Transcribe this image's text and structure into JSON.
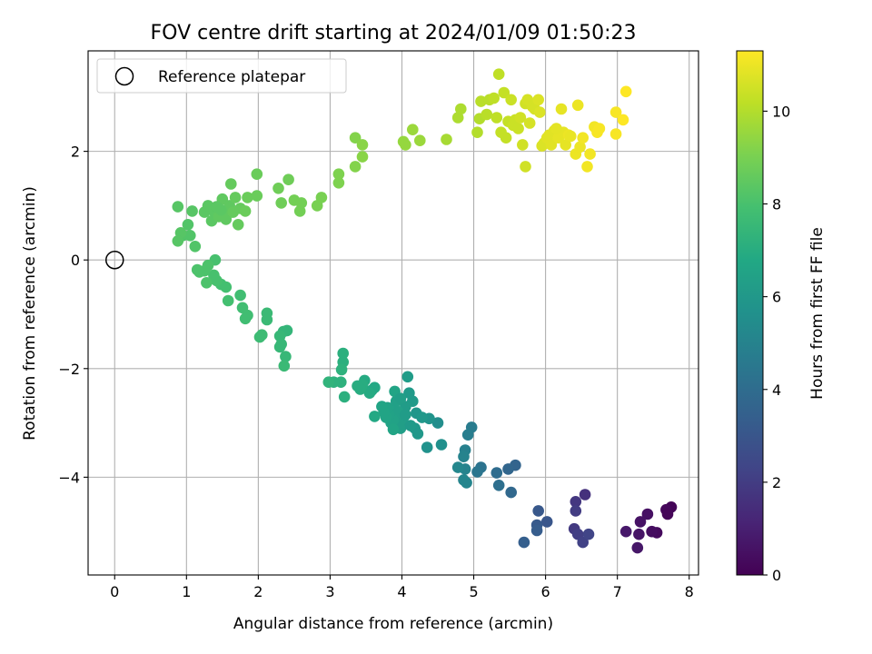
{
  "chart_data": {
    "type": "scatter",
    "title": "FOV centre drift starting at 2024/01/09 01:50:23",
    "xlabel": "Angular distance from reference (arcmin)",
    "ylabel": "Rotation from reference (arcmin)",
    "xlim": [
      -0.37,
      8.13
    ],
    "ylim": [
      -5.8,
      3.85
    ],
    "xticks": [
      0,
      1,
      2,
      3,
      4,
      5,
      6,
      7,
      8
    ],
    "yticks": [
      -4,
      -2,
      0,
      2
    ],
    "grid": true,
    "legend": {
      "position": "top-left",
      "entries": [
        {
          "label": "Reference platepar",
          "marker": "open-circle"
        }
      ]
    },
    "reference_point": {
      "x": 0,
      "y": 0
    },
    "colorbar": {
      "label": "Hours from first FF file",
      "range": [
        0,
        11.3
      ],
      "ticks": [
        0,
        2,
        4,
        6,
        8,
        10
      ],
      "colormap": "viridis"
    },
    "points": [
      {
        "x": 7.75,
        "y": -4.55,
        "c": 0.1
      },
      {
        "x": 7.68,
        "y": -4.6,
        "c": 0.2
      },
      {
        "x": 7.7,
        "y": -4.68,
        "c": 0.15
      },
      {
        "x": 7.55,
        "y": -5.02,
        "c": 0.3
      },
      {
        "x": 7.48,
        "y": -5.0,
        "c": 0.4
      },
      {
        "x": 7.42,
        "y": -4.68,
        "c": 0.5
      },
      {
        "x": 7.32,
        "y": -4.82,
        "c": 0.55
      },
      {
        "x": 7.3,
        "y": -5.05,
        "c": 0.6
      },
      {
        "x": 7.28,
        "y": -5.3,
        "c": 0.7
      },
      {
        "x": 7.12,
        "y": -5.0,
        "c": 0.75
      },
      {
        "x": 6.55,
        "y": -4.32,
        "c": 1.6
      },
      {
        "x": 6.42,
        "y": -4.45,
        "c": 1.8
      },
      {
        "x": 6.42,
        "y": -4.62,
        "c": 2.0
      },
      {
        "x": 6.4,
        "y": -4.95,
        "c": 1.9
      },
      {
        "x": 6.45,
        "y": -5.05,
        "c": 2.1
      },
      {
        "x": 6.52,
        "y": -5.2,
        "c": 2.2
      },
      {
        "x": 6.6,
        "y": -5.05,
        "c": 2.3
      },
      {
        "x": 6.02,
        "y": -4.82,
        "c": 3.0
      },
      {
        "x": 5.9,
        "y": -4.62,
        "c": 3.1
      },
      {
        "x": 5.88,
        "y": -4.88,
        "c": 3.2
      },
      {
        "x": 5.88,
        "y": -4.98,
        "c": 3.3
      },
      {
        "x": 5.7,
        "y": -5.2,
        "c": 3.4
      },
      {
        "x": 5.58,
        "y": -3.78,
        "c": 3.6
      },
      {
        "x": 5.48,
        "y": -3.85,
        "c": 3.7
      },
      {
        "x": 5.52,
        "y": -4.28,
        "c": 3.8
      },
      {
        "x": 5.32,
        "y": -3.92,
        "c": 4.0
      },
      {
        "x": 5.35,
        "y": -4.15,
        "c": 4.1
      },
      {
        "x": 5.1,
        "y": -3.82,
        "c": 4.3
      },
      {
        "x": 5.05,
        "y": -3.9,
        "c": 4.4
      },
      {
        "x": 4.97,
        "y": -3.08,
        "c": 4.7
      },
      {
        "x": 4.92,
        "y": -3.22,
        "c": 4.8
      },
      {
        "x": 4.88,
        "y": -3.5,
        "c": 4.9
      },
      {
        "x": 4.86,
        "y": -3.62,
        "c": 5.0
      },
      {
        "x": 4.88,
        "y": -3.85,
        "c": 5.0
      },
      {
        "x": 4.86,
        "y": -4.05,
        "c": 5.1
      },
      {
        "x": 4.9,
        "y": -4.1,
        "c": 5.1
      },
      {
        "x": 4.78,
        "y": -3.82,
        "c": 5.2
      },
      {
        "x": 4.5,
        "y": -3.0,
        "c": 5.5
      },
      {
        "x": 4.55,
        "y": -3.4,
        "c": 5.6
      },
      {
        "x": 4.35,
        "y": -3.45,
        "c": 5.7
      },
      {
        "x": 4.38,
        "y": -2.92,
        "c": 5.8
      },
      {
        "x": 4.2,
        "y": -2.82,
        "c": 5.9
      },
      {
        "x": 4.18,
        "y": -3.1,
        "c": 6.0
      },
      {
        "x": 4.22,
        "y": -3.2,
        "c": 6.0
      },
      {
        "x": 4.15,
        "y": -2.6,
        "c": 6.1
      },
      {
        "x": 4.1,
        "y": -2.45,
        "c": 6.1
      },
      {
        "x": 4.08,
        "y": -2.15,
        "c": 6.2
      },
      {
        "x": 4.05,
        "y": -2.7,
        "c": 6.2
      },
      {
        "x": 4.02,
        "y": -2.9,
        "c": 6.3
      },
      {
        "x": 4.0,
        "y": -3.0,
        "c": 6.3
      },
      {
        "x": 3.98,
        "y": -3.1,
        "c": 6.3
      },
      {
        "x": 3.95,
        "y": -2.8,
        "c": 6.4
      },
      {
        "x": 3.92,
        "y": -2.6,
        "c": 6.4
      },
      {
        "x": 3.9,
        "y": -2.75,
        "c": 6.4
      },
      {
        "x": 3.88,
        "y": -2.95,
        "c": 6.5
      },
      {
        "x": 3.85,
        "y": -3.0,
        "c": 6.5
      },
      {
        "x": 3.82,
        "y": -2.85,
        "c": 6.5
      },
      {
        "x": 3.8,
        "y": -2.72,
        "c": 6.5
      },
      {
        "x": 3.78,
        "y": -2.9,
        "c": 6.6
      },
      {
        "x": 3.75,
        "y": -2.8,
        "c": 6.6
      },
      {
        "x": 3.72,
        "y": -2.7,
        "c": 6.6
      },
      {
        "x": 3.9,
        "y": -2.42,
        "c": 6.6
      },
      {
        "x": 3.88,
        "y": -3.12,
        "c": 6.6
      },
      {
        "x": 4.12,
        "y": -3.05,
        "c": 6.1
      },
      {
        "x": 4.28,
        "y": -2.9,
        "c": 6.0
      },
      {
        "x": 4.05,
        "y": -2.85,
        "c": 6.2
      },
      {
        "x": 3.98,
        "y": -2.55,
        "c": 6.3
      },
      {
        "x": 3.58,
        "y": -2.4,
        "c": 6.8
      },
      {
        "x": 3.62,
        "y": -2.35,
        "c": 6.8
      },
      {
        "x": 3.55,
        "y": -2.45,
        "c": 6.9
      },
      {
        "x": 3.48,
        "y": -2.22,
        "c": 6.9
      },
      {
        "x": 3.45,
        "y": -2.3,
        "c": 7.0
      },
      {
        "x": 3.42,
        "y": -2.38,
        "c": 7.0
      },
      {
        "x": 3.38,
        "y": -2.32,
        "c": 7.0
      },
      {
        "x": 3.62,
        "y": -2.88,
        "c": 6.8
      },
      {
        "x": 3.18,
        "y": -1.72,
        "c": 7.1
      },
      {
        "x": 3.18,
        "y": -1.88,
        "c": 7.1
      },
      {
        "x": 3.16,
        "y": -2.02,
        "c": 7.2
      },
      {
        "x": 3.2,
        "y": -2.52,
        "c": 7.1
      },
      {
        "x": 3.15,
        "y": -2.25,
        "c": 7.2
      },
      {
        "x": 3.05,
        "y": -2.25,
        "c": 7.2
      },
      {
        "x": 2.98,
        "y": -2.25,
        "c": 7.3
      },
      {
        "x": 2.4,
        "y": -1.3,
        "c": 7.4
      },
      {
        "x": 2.35,
        "y": -1.32,
        "c": 7.4
      },
      {
        "x": 2.3,
        "y": -1.4,
        "c": 7.5
      },
      {
        "x": 2.32,
        "y": -1.55,
        "c": 7.5
      },
      {
        "x": 2.3,
        "y": -1.6,
        "c": 7.5
      },
      {
        "x": 2.38,
        "y": -1.78,
        "c": 7.5
      },
      {
        "x": 2.36,
        "y": -1.95,
        "c": 7.6
      },
      {
        "x": 2.12,
        "y": -0.98,
        "c": 7.6
      },
      {
        "x": 2.12,
        "y": -1.1,
        "c": 7.6
      },
      {
        "x": 2.05,
        "y": -1.38,
        "c": 7.7
      },
      {
        "x": 2.02,
        "y": -1.42,
        "c": 7.7
      },
      {
        "x": 1.82,
        "y": -1.08,
        "c": 7.8
      },
      {
        "x": 1.85,
        "y": -1.02,
        "c": 7.8
      },
      {
        "x": 1.78,
        "y": -0.88,
        "c": 7.8
      },
      {
        "x": 1.75,
        "y": -0.65,
        "c": 7.8
      },
      {
        "x": 1.55,
        "y": -0.5,
        "c": 7.9
      },
      {
        "x": 1.58,
        "y": -0.75,
        "c": 7.9
      },
      {
        "x": 1.48,
        "y": -0.45,
        "c": 7.9
      },
      {
        "x": 1.4,
        "y": 0.0,
        "c": 8.0
      },
      {
        "x": 1.38,
        "y": -0.28,
        "c": 8.0
      },
      {
        "x": 1.42,
        "y": -0.38,
        "c": 8.0
      },
      {
        "x": 1.3,
        "y": -0.1,
        "c": 8.1
      },
      {
        "x": 1.28,
        "y": -0.42,
        "c": 8.1
      },
      {
        "x": 1.25,
        "y": -0.2,
        "c": 8.1
      },
      {
        "x": 1.18,
        "y": -0.22,
        "c": 8.1
      },
      {
        "x": 1.15,
        "y": -0.18,
        "c": 8.1
      },
      {
        "x": 1.12,
        "y": 0.25,
        "c": 8.2
      },
      {
        "x": 1.05,
        "y": 0.45,
        "c": 8.2
      },
      {
        "x": 1.02,
        "y": 0.65,
        "c": 8.2
      },
      {
        "x": 0.95,
        "y": 0.45,
        "c": 8.2
      },
      {
        "x": 0.92,
        "y": 0.5,
        "c": 8.3
      },
      {
        "x": 0.88,
        "y": 0.35,
        "c": 8.3
      },
      {
        "x": 0.88,
        "y": 0.98,
        "c": 8.3
      },
      {
        "x": 1.08,
        "y": 0.9,
        "c": 8.3
      },
      {
        "x": 1.25,
        "y": 0.88,
        "c": 8.4
      },
      {
        "x": 1.3,
        "y": 1.0,
        "c": 8.4
      },
      {
        "x": 1.35,
        "y": 0.72,
        "c": 8.4
      },
      {
        "x": 1.38,
        "y": 0.9,
        "c": 8.4
      },
      {
        "x": 1.45,
        "y": 0.8,
        "c": 8.5
      },
      {
        "x": 1.5,
        "y": 1.12,
        "c": 8.5
      },
      {
        "x": 1.52,
        "y": 0.85,
        "c": 8.5
      },
      {
        "x": 1.55,
        "y": 0.75,
        "c": 8.5
      },
      {
        "x": 1.6,
        "y": 1.0,
        "c": 8.5
      },
      {
        "x": 1.62,
        "y": 1.4,
        "c": 8.6
      },
      {
        "x": 1.65,
        "y": 0.88,
        "c": 8.6
      },
      {
        "x": 1.68,
        "y": 1.15,
        "c": 8.6
      },
      {
        "x": 1.72,
        "y": 0.65,
        "c": 8.6
      },
      {
        "x": 1.75,
        "y": 0.95,
        "c": 8.6
      },
      {
        "x": 1.82,
        "y": 0.9,
        "c": 8.7
      },
      {
        "x": 1.85,
        "y": 1.15,
        "c": 8.7
      },
      {
        "x": 1.98,
        "y": 1.58,
        "c": 8.7
      },
      {
        "x": 1.98,
        "y": 1.18,
        "c": 8.7
      },
      {
        "x": 1.42,
        "y": 0.98,
        "c": 8.4
      },
      {
        "x": 1.48,
        "y": 0.92,
        "c": 8.4
      },
      {
        "x": 2.28,
        "y": 1.32,
        "c": 8.8
      },
      {
        "x": 2.42,
        "y": 1.48,
        "c": 8.8
      },
      {
        "x": 2.32,
        "y": 1.05,
        "c": 8.8
      },
      {
        "x": 2.5,
        "y": 1.1,
        "c": 8.9
      },
      {
        "x": 2.58,
        "y": 0.9,
        "c": 8.9
      },
      {
        "x": 2.6,
        "y": 1.05,
        "c": 8.9
      },
      {
        "x": 2.82,
        "y": 1.0,
        "c": 9.0
      },
      {
        "x": 2.88,
        "y": 1.15,
        "c": 9.0
      },
      {
        "x": 3.12,
        "y": 1.42,
        "c": 9.1
      },
      {
        "x": 3.12,
        "y": 1.58,
        "c": 9.1
      },
      {
        "x": 3.35,
        "y": 2.25,
        "c": 9.2
      },
      {
        "x": 3.35,
        "y": 1.72,
        "c": 9.2
      },
      {
        "x": 3.45,
        "y": 1.9,
        "c": 9.3
      },
      {
        "x": 3.45,
        "y": 2.12,
        "c": 9.3
      },
      {
        "x": 4.02,
        "y": 2.18,
        "c": 9.5
      },
      {
        "x": 4.05,
        "y": 2.12,
        "c": 9.5
      },
      {
        "x": 4.15,
        "y": 2.4,
        "c": 9.6
      },
      {
        "x": 4.25,
        "y": 2.2,
        "c": 9.6
      },
      {
        "x": 4.62,
        "y": 2.22,
        "c": 9.8
      },
      {
        "x": 4.78,
        "y": 2.62,
        "c": 9.9
      },
      {
        "x": 4.82,
        "y": 2.78,
        "c": 9.9
      },
      {
        "x": 5.05,
        "y": 2.35,
        "c": 10.0
      },
      {
        "x": 5.08,
        "y": 2.6,
        "c": 10.0
      },
      {
        "x": 5.1,
        "y": 2.92,
        "c": 10.1
      },
      {
        "x": 5.18,
        "y": 2.68,
        "c": 10.1
      },
      {
        "x": 5.22,
        "y": 2.95,
        "c": 10.1
      },
      {
        "x": 5.28,
        "y": 2.98,
        "c": 10.2
      },
      {
        "x": 5.32,
        "y": 2.62,
        "c": 10.2
      },
      {
        "x": 5.35,
        "y": 3.42,
        "c": 10.2
      },
      {
        "x": 5.38,
        "y": 2.35,
        "c": 10.3
      },
      {
        "x": 5.42,
        "y": 3.08,
        "c": 10.3
      },
      {
        "x": 5.45,
        "y": 2.25,
        "c": 10.3
      },
      {
        "x": 5.48,
        "y": 2.55,
        "c": 10.3
      },
      {
        "x": 5.52,
        "y": 2.95,
        "c": 10.4
      },
      {
        "x": 5.55,
        "y": 2.48,
        "c": 10.4
      },
      {
        "x": 5.58,
        "y": 2.58,
        "c": 10.4
      },
      {
        "x": 5.62,
        "y": 2.42,
        "c": 10.4
      },
      {
        "x": 5.65,
        "y": 2.62,
        "c": 10.5
      },
      {
        "x": 5.68,
        "y": 2.12,
        "c": 10.5
      },
      {
        "x": 5.72,
        "y": 1.72,
        "c": 10.5
      },
      {
        "x": 5.72,
        "y": 2.88,
        "c": 10.5
      },
      {
        "x": 5.75,
        "y": 2.95,
        "c": 10.6
      },
      {
        "x": 5.78,
        "y": 2.52,
        "c": 10.6
      },
      {
        "x": 5.82,
        "y": 2.82,
        "c": 10.6
      },
      {
        "x": 5.85,
        "y": 2.78,
        "c": 10.6
      },
      {
        "x": 5.9,
        "y": 2.95,
        "c": 10.7
      },
      {
        "x": 5.92,
        "y": 2.72,
        "c": 10.7
      },
      {
        "x": 5.95,
        "y": 2.1,
        "c": 10.7
      },
      {
        "x": 5.98,
        "y": 2.15,
        "c": 10.7
      },
      {
        "x": 6.02,
        "y": 2.25,
        "c": 10.8
      },
      {
        "x": 6.05,
        "y": 2.3,
        "c": 10.8
      },
      {
        "x": 6.08,
        "y": 2.12,
        "c": 10.8
      },
      {
        "x": 6.12,
        "y": 2.38,
        "c": 10.8
      },
      {
        "x": 6.18,
        "y": 2.25,
        "c": 10.9
      },
      {
        "x": 6.22,
        "y": 2.78,
        "c": 10.9
      },
      {
        "x": 6.25,
        "y": 2.35,
        "c": 10.9
      },
      {
        "x": 6.28,
        "y": 2.12,
        "c": 10.9
      },
      {
        "x": 6.32,
        "y": 2.3,
        "c": 11.0
      },
      {
        "x": 6.42,
        "y": 1.95,
        "c": 11.0
      },
      {
        "x": 6.45,
        "y": 2.85,
        "c": 11.0
      },
      {
        "x": 6.48,
        "y": 2.08,
        "c": 11.0
      },
      {
        "x": 6.52,
        "y": 2.25,
        "c": 11.1
      },
      {
        "x": 6.58,
        "y": 1.72,
        "c": 11.1
      },
      {
        "x": 6.62,
        "y": 1.95,
        "c": 11.1
      },
      {
        "x": 6.68,
        "y": 2.45,
        "c": 11.1
      },
      {
        "x": 6.72,
        "y": 2.35,
        "c": 11.2
      },
      {
        "x": 6.75,
        "y": 2.42,
        "c": 11.2
      },
      {
        "x": 6.98,
        "y": 2.32,
        "c": 11.2
      },
      {
        "x": 6.98,
        "y": 2.72,
        "c": 11.2
      },
      {
        "x": 7.08,
        "y": 2.58,
        "c": 11.3
      },
      {
        "x": 7.12,
        "y": 3.1,
        "c": 11.3
      },
      {
        "x": 6.35,
        "y": 2.28,
        "c": 10.95
      },
      {
        "x": 6.15,
        "y": 2.42,
        "c": 10.85
      }
    ]
  }
}
